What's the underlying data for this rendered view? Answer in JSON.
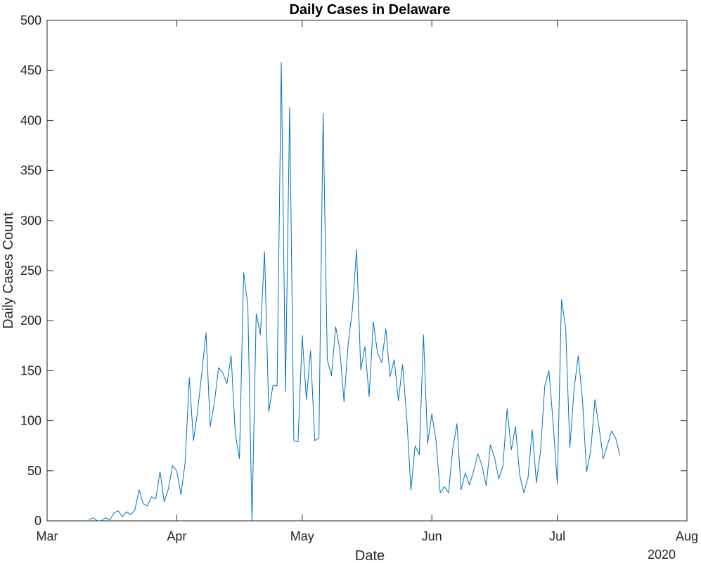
{
  "chart_data": {
    "type": "line",
    "title": "Daily Cases in Delaware",
    "xlabel": "Date",
    "ylabel": "Daily Cases Count",
    "x_secondary_label": "2020",
    "x_range": [
      "2020-03-01",
      "2020-08-01"
    ],
    "ylim": [
      0,
      500
    ],
    "y_ticks": [
      0,
      50,
      100,
      150,
      200,
      250,
      300,
      350,
      400,
      450,
      500
    ],
    "x_ticks": [
      {
        "date": "2020-03-01",
        "label": "Mar"
      },
      {
        "date": "2020-04-01",
        "label": "Apr"
      },
      {
        "date": "2020-05-01",
        "label": "May"
      },
      {
        "date": "2020-06-01",
        "label": "Jun"
      },
      {
        "date": "2020-07-01",
        "label": "Jul"
      },
      {
        "date": "2020-08-01",
        "label": "Aug"
      }
    ],
    "grid": false,
    "line_color": "#0072BD",
    "series": [
      {
        "x": [
          "2020-03-11",
          "2020-03-12",
          "2020-03-13",
          "2020-03-14",
          "2020-03-15",
          "2020-03-16",
          "2020-03-17",
          "2020-03-18",
          "2020-03-19",
          "2020-03-20",
          "2020-03-21",
          "2020-03-22",
          "2020-03-23",
          "2020-03-24",
          "2020-03-25",
          "2020-03-26",
          "2020-03-27",
          "2020-03-28",
          "2020-03-29",
          "2020-03-30",
          "2020-03-31",
          "2020-04-01",
          "2020-04-02",
          "2020-04-03",
          "2020-04-04",
          "2020-04-05",
          "2020-04-06",
          "2020-04-07",
          "2020-04-08",
          "2020-04-09",
          "2020-04-10",
          "2020-04-11",
          "2020-04-12",
          "2020-04-13",
          "2020-04-14",
          "2020-04-15",
          "2020-04-16",
          "2020-04-17",
          "2020-04-18",
          "2020-04-19",
          "2020-04-20",
          "2020-04-21",
          "2020-04-22",
          "2020-04-23",
          "2020-04-24",
          "2020-04-25",
          "2020-04-26",
          "2020-04-27",
          "2020-04-28",
          "2020-04-29",
          "2020-04-30",
          "2020-05-01",
          "2020-05-02",
          "2020-05-03",
          "2020-05-04",
          "2020-05-05",
          "2020-05-06",
          "2020-05-07",
          "2020-05-08",
          "2020-05-09",
          "2020-05-10",
          "2020-05-11",
          "2020-05-12",
          "2020-05-13",
          "2020-05-14",
          "2020-05-15",
          "2020-05-16",
          "2020-05-17",
          "2020-05-18",
          "2020-05-19",
          "2020-05-20",
          "2020-05-21",
          "2020-05-22",
          "2020-05-23",
          "2020-05-24",
          "2020-05-25",
          "2020-05-26",
          "2020-05-27",
          "2020-05-28",
          "2020-05-29",
          "2020-05-30",
          "2020-05-31",
          "2020-06-01",
          "2020-06-02",
          "2020-06-03",
          "2020-06-04",
          "2020-06-05",
          "2020-06-06",
          "2020-06-07",
          "2020-06-08",
          "2020-06-09",
          "2020-06-10",
          "2020-06-11",
          "2020-06-12",
          "2020-06-13",
          "2020-06-14",
          "2020-06-15",
          "2020-06-16",
          "2020-06-17",
          "2020-06-18",
          "2020-06-19",
          "2020-06-20",
          "2020-06-21",
          "2020-06-22",
          "2020-06-23",
          "2020-06-24",
          "2020-06-25",
          "2020-06-26",
          "2020-06-27",
          "2020-06-28",
          "2020-06-29",
          "2020-06-30",
          "2020-07-01",
          "2020-07-02",
          "2020-07-03",
          "2020-07-04",
          "2020-07-05",
          "2020-07-06",
          "2020-07-07",
          "2020-07-08",
          "2020-07-09",
          "2020-07-10",
          "2020-07-11",
          "2020-07-12",
          "2020-07-13",
          "2020-07-14",
          "2020-07-15",
          "2020-07-16"
        ],
        "values": [
          1,
          3,
          0,
          0,
          3,
          1,
          8,
          10,
          4,
          9,
          6,
          11,
          31,
          17,
          15,
          24,
          22,
          49,
          19,
          32,
          55,
          50,
          26,
          58,
          143,
          80,
          110,
          148,
          188,
          94,
          118,
          153,
          148,
          137,
          165,
          87,
          62,
          248,
          215,
          0,
          207,
          186,
          269,
          109,
          135,
          135,
          458,
          129,
          413,
          80,
          79,
          185,
          121,
          170,
          80,
          83,
          407,
          161,
          145,
          194,
          171,
          119,
          177,
          211,
          271,
          151,
          174,
          124,
          199,
          168,
          158,
          192,
          144,
          161,
          120,
          156,
          103,
          31,
          75,
          66,
          186,
          77,
          107,
          80,
          28,
          34,
          28,
          72,
          97,
          31,
          48,
          36,
          50,
          67,
          55,
          35,
          76,
          63,
          42,
          55,
          112,
          71,
          94,
          46,
          28,
          43,
          91,
          38,
          70,
          135,
          150,
          98,
          37,
          221,
          193,
          73,
          131,
          165,
          122,
          49,
          70,
          121,
          93,
          62,
          76,
          90,
          82,
          65
        ]
      }
    ]
  }
}
